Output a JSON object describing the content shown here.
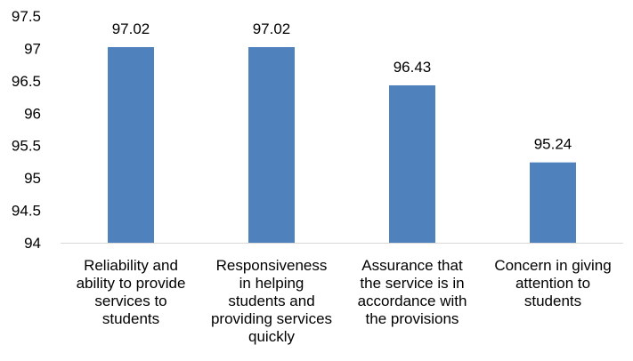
{
  "chart_data": {
    "type": "bar",
    "title": "",
    "xlabel": "",
    "ylabel": "",
    "categories": [
      [
        "Reliability and",
        "ability to provide",
        "services to",
        "students"
      ],
      [
        "Responsiveness",
        "in helping",
        "students and",
        "providing services",
        "quickly"
      ],
      [
        "Assurance that",
        "the service is in",
        "accordance with",
        "the provisions"
      ],
      [
        "Concern in giving",
        "attention to",
        "students"
      ]
    ],
    "values": [
      97.02,
      97.02,
      96.43,
      95.24
    ],
    "value_labels": [
      "97.02",
      "97.02",
      "96.43",
      "95.24"
    ],
    "ylim": [
      94,
      97.5
    ],
    "yticks": [
      "94",
      "94.5",
      "95",
      "95.5",
      "96",
      "96.5",
      "97",
      "97.5"
    ],
    "grid": false,
    "legend": "none",
    "bar_color": "#4f81bd",
    "text_color": "#000000",
    "axis_color": "#d9d9d9"
  }
}
